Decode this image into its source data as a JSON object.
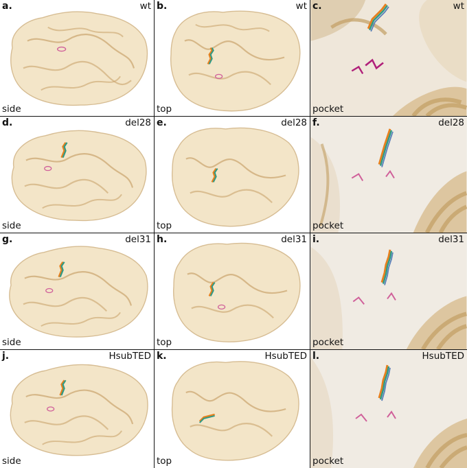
{
  "colors": {
    "surface_fill": "#f2e3c3",
    "surface_edge": "#d2b587",
    "ribbon": "#c9a46c",
    "ligand_orange": "#e7801e",
    "ligand_teal": "#2e9a86",
    "ligand_blue": "#5a7fb8",
    "residue_pink": "#d0609a",
    "residue_magenta": "#b0207a"
  },
  "panels": [
    {
      "letter": "a.",
      "variant": "wt",
      "view": "side"
    },
    {
      "letter": "b.",
      "variant": "wt",
      "view": "top"
    },
    {
      "letter": "c.",
      "variant": "wt",
      "view": "pocket"
    },
    {
      "letter": "d.",
      "variant": "del28",
      "view": "side"
    },
    {
      "letter": "e.",
      "variant": "del28",
      "view": "top"
    },
    {
      "letter": "f.",
      "variant": "del28",
      "view": "pocket"
    },
    {
      "letter": "g.",
      "variant": "del31",
      "view": "side"
    },
    {
      "letter": "h.",
      "variant": "del31",
      "view": "top"
    },
    {
      "letter": "i.",
      "variant": "del31",
      "view": "pocket"
    },
    {
      "letter": "j.",
      "variant": "HsubTED",
      "view": "side"
    },
    {
      "letter": "k.",
      "variant": "HsubTED",
      "view": "top"
    },
    {
      "letter": "l.",
      "variant": "HsubTED",
      "view": "pocket"
    }
  ]
}
